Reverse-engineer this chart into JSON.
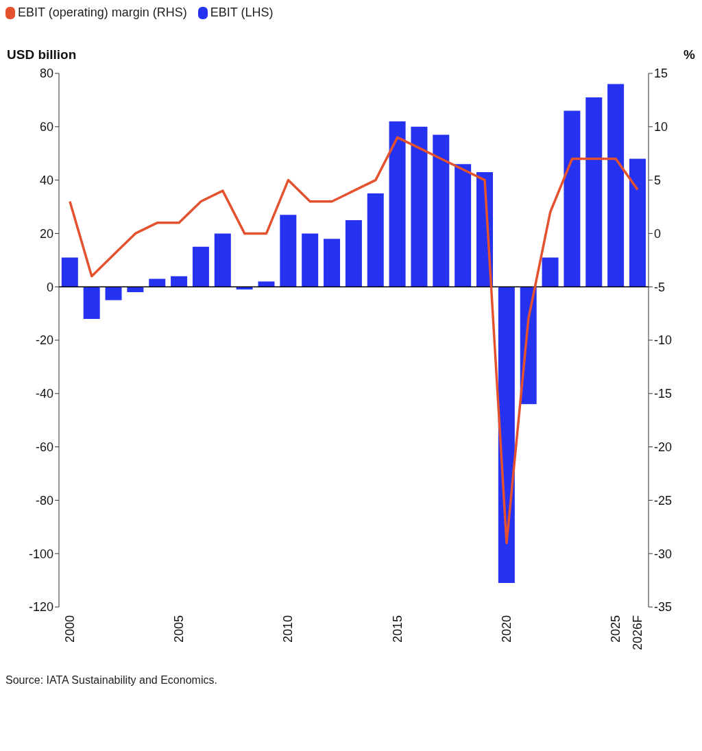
{
  "chart_data": {
    "type": "bar",
    "categories": [
      "2000",
      null,
      null,
      null,
      null,
      "2005",
      null,
      null,
      null,
      null,
      "2010",
      null,
      null,
      null,
      null,
      "2015",
      null,
      null,
      null,
      null,
      "2020",
      null,
      null,
      null,
      null,
      "2025",
      "2026F"
    ],
    "series": [
      {
        "name": "EBIT (operating) margin (RHS)",
        "type": "line",
        "axis": "y2",
        "color": "#e4512f",
        "values": [
          3,
          -4,
          -2,
          0,
          1,
          1,
          3,
          4,
          0,
          0,
          5,
          3,
          3,
          4,
          5,
          9,
          8,
          7,
          6,
          5,
          -29,
          -8,
          2,
          7,
          7,
          7,
          4.1
        ]
      },
      {
        "name": "EBIT (LHS)",
        "color": "#2533f0",
        "values": [
          11,
          -12,
          -5,
          -2,
          3,
          4,
          15,
          20,
          -1,
          2,
          27,
          20,
          18,
          25,
          35,
          62,
          60,
          57,
          46,
          43,
          -111,
          -44,
          11,
          66,
          71,
          76,
          48
        ]
      }
    ],
    "ylabel": "USD billion",
    "y2label": "%",
    "ylim": [
      -120,
      80
    ],
    "yticks": [
      -120,
      -100,
      -80,
      -60,
      -40,
      -20,
      0,
      20,
      40,
      60,
      80
    ],
    "y2lim": [
      -35,
      15
    ],
    "y2ticks": [
      -35,
      -30,
      -25,
      -20,
      -15,
      -10,
      -5,
      0,
      5,
      10,
      15
    ],
    "ref_lines": [
      {
        "axis": "y",
        "value": 0,
        "color": "#000000"
      }
    ],
    "legend": "top left",
    "grid": false,
    "marker": "none",
    "line_style": "solid",
    "annotations": [
      "Source: IATA Sustainability and Economics."
    ]
  }
}
